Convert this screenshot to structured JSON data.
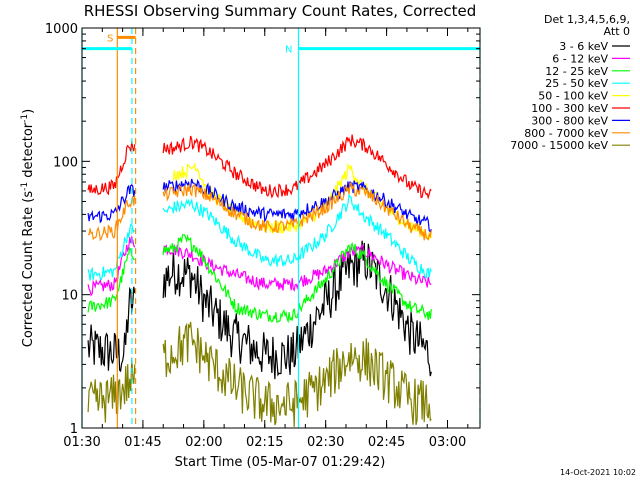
{
  "chart_data": {
    "type": "line",
    "title": "RHESSI Observing Summary Count Rates, Corrected",
    "xlabel": "Start Time (05-Mar-07 01:29:42)",
    "ylabel": "Corrected Count Rate (s",
    "ylabel_sup": "-1",
    "ylabel_mid": " detector",
    "ylabel_sup2": "-1",
    "ylabel_end": ")",
    "y_scale": "log",
    "ylim": [
      1,
      1000
    ],
    "xlim": [
      "01:30",
      "03:08"
    ],
    "x_ticks": [
      "01:30",
      "01:45",
      "02:00",
      "02:15",
      "02:30",
      "02:45",
      "03:00"
    ],
    "y_ticks": [
      "1",
      "10",
      "100",
      "1000"
    ],
    "legend_header": [
      "Det 1,3,4,5,6,9,",
      "Att 0"
    ],
    "legend_position": "right",
    "series": [
      {
        "name": "3 - 6 keV",
        "color": "#000000",
        "values": [
          [
            1.5,
            4
          ],
          [
            10.5,
            3.5
          ],
          [
            11.5,
            8
          ],
          [
            22.5,
            15
          ],
          [
            27,
            14
          ],
          [
            30,
            9
          ],
          [
            37,
            5
          ],
          [
            45,
            3.5
          ],
          [
            52,
            3.5
          ],
          [
            58,
            7
          ],
          [
            66,
            16
          ],
          [
            70,
            18
          ],
          [
            76,
            10
          ],
          [
            81,
            5
          ],
          [
            86,
            3.5
          ]
        ]
      },
      {
        "name": "6 - 12 keV",
        "color": "#ff00ff",
        "values": [
          [
            1.5,
            11
          ],
          [
            8,
            12
          ],
          [
            11.5,
            25
          ],
          [
            22.5,
            22
          ],
          [
            27,
            20
          ],
          [
            31,
            17
          ],
          [
            38,
            14
          ],
          [
            45,
            12
          ],
          [
            52,
            12
          ],
          [
            60,
            15
          ],
          [
            66,
            21
          ],
          [
            70,
            21
          ],
          [
            76,
            16
          ],
          [
            82,
            13
          ],
          [
            86,
            12
          ]
        ]
      },
      {
        "name": "12 - 25 keV",
        "color": "#00ff00",
        "values": [
          [
            1.5,
            8
          ],
          [
            8,
            9
          ],
          [
            11.5,
            20
          ],
          [
            22.5,
            22
          ],
          [
            25,
            26
          ],
          [
            28,
            23
          ],
          [
            32,
            15
          ],
          [
            38,
            8
          ],
          [
            45,
            7
          ],
          [
            52,
            7
          ],
          [
            60,
            13
          ],
          [
            66,
            23
          ],
          [
            69,
            20
          ],
          [
            75,
            12
          ],
          [
            81,
            8
          ],
          [
            86,
            7
          ]
        ]
      },
      {
        "name": "25 - 50 keV",
        "color": "#00ffff",
        "values": [
          [
            1.5,
            14
          ],
          [
            8,
            15
          ],
          [
            11.5,
            30
          ],
          [
            22.5,
            45
          ],
          [
            27,
            48
          ],
          [
            31,
            40
          ],
          [
            38,
            25
          ],
          [
            45,
            18
          ],
          [
            52,
            18
          ],
          [
            60,
            28
          ],
          [
            66,
            52
          ],
          [
            69,
            40
          ],
          [
            75,
            28
          ],
          [
            81,
            18
          ],
          [
            86,
            14
          ]
        ]
      },
      {
        "name": "50 - 100 keV",
        "color": "#ffff00",
        "values": [
          [
            22.5,
            80
          ],
          [
            26,
            85
          ],
          [
            28,
            95
          ],
          [
            31,
            60
          ],
          [
            38,
            40
          ],
          [
            45,
            32
          ],
          [
            52,
            32
          ],
          [
            60,
            45
          ],
          [
            66,
            90
          ],
          [
            69,
            65
          ],
          [
            75,
            45
          ],
          [
            81,
            32
          ],
          [
            86,
            28
          ]
        ]
      },
      {
        "name": "100 - 300 keV",
        "color": "#ff0000",
        "values": [
          [
            1.5,
            60
          ],
          [
            8,
            65
          ],
          [
            11.5,
            130
          ],
          [
            22.5,
            125
          ],
          [
            27,
            140
          ],
          [
            31,
            120
          ],
          [
            38,
            80
          ],
          [
            45,
            60
          ],
          [
            52,
            62
          ],
          [
            60,
            95
          ],
          [
            66,
            145
          ],
          [
            70,
            130
          ],
          [
            76,
            90
          ],
          [
            81,
            65
          ],
          [
            86,
            55
          ]
        ]
      },
      {
        "name": "300 - 800 keV",
        "color": "#0000ff",
        "values": [
          [
            1.5,
            38
          ],
          [
            8,
            40
          ],
          [
            11.5,
            60
          ],
          [
            22.5,
            65
          ],
          [
            27,
            70
          ],
          [
            31,
            60
          ],
          [
            38,
            45
          ],
          [
            45,
            40
          ],
          [
            52,
            40
          ],
          [
            60,
            50
          ],
          [
            66,
            65
          ],
          [
            70,
            62
          ],
          [
            76,
            48
          ],
          [
            81,
            38
          ],
          [
            86,
            33
          ]
        ]
      },
      {
        "name": "800 - 7000 keV",
        "color": "#ff8c00",
        "values": [
          [
            1.5,
            28
          ],
          [
            8,
            30
          ],
          [
            11.5,
            50
          ],
          [
            22.5,
            58
          ],
          [
            27,
            62
          ],
          [
            31,
            55
          ],
          [
            38,
            40
          ],
          [
            45,
            32
          ],
          [
            52,
            33
          ],
          [
            60,
            45
          ],
          [
            66,
            62
          ],
          [
            70,
            58
          ],
          [
            76,
            42
          ],
          [
            81,
            32
          ],
          [
            86,
            27
          ]
        ]
      },
      {
        "name": "7000 - 15000 keV",
        "color": "#808000",
        "values": [
          [
            1.5,
            1.5
          ],
          [
            8,
            1.7
          ],
          [
            11.5,
            2.2
          ],
          [
            22.5,
            3.8
          ],
          [
            27,
            4.5
          ],
          [
            31,
            3.2
          ],
          [
            38,
            2
          ],
          [
            45,
            1.5
          ],
          [
            52,
            1.5
          ],
          [
            60,
            2.2
          ],
          [
            66,
            3.5
          ],
          [
            70,
            3.2
          ],
          [
            76,
            2.2
          ],
          [
            81,
            1.6
          ],
          [
            86,
            1.5
          ]
        ]
      }
    ],
    "saa_bars": [
      {
        "label": "",
        "start_min": 0,
        "end_min": 12.3,
        "level": 700,
        "color": "#00ffff"
      },
      {
        "label": "N",
        "start_min": 53.3,
        "end_min": 98,
        "level": 700,
        "color": "#00ffff"
      }
    ],
    "night_marker": {
      "label": "S",
      "start_min": 8.7,
      "end_min": 13.2,
      "color": "#ff8c00"
    },
    "vlines": [
      {
        "min": 0,
        "color": "#00ffff",
        "style": "solid"
      },
      {
        "min": 8.7,
        "color": "#ff8c00",
        "style": "solid"
      },
      {
        "min": 12.3,
        "color": "#00ffff",
        "style": "dashed"
      },
      {
        "min": 13.2,
        "color": "#ff8c00",
        "style": "dashed"
      },
      {
        "min": 53.3,
        "color": "#00ffff",
        "style": "solid"
      },
      {
        "min": 98,
        "color": "#00ffff",
        "style": "dashed"
      }
    ],
    "gaps": [
      [
        13.2,
        20
      ]
    ],
    "grid": false,
    "timestamp": "14-Oct-2021 10:02"
  }
}
